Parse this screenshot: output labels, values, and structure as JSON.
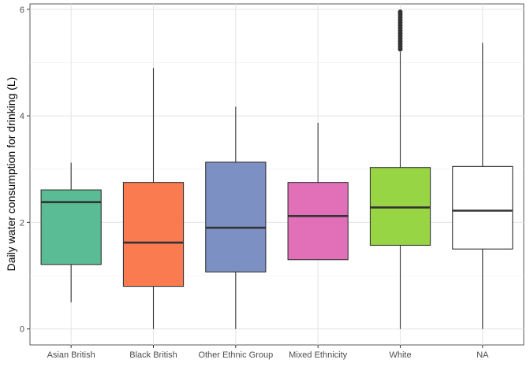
{
  "chart_data": {
    "type": "boxplot",
    "title": "",
    "xlabel": "",
    "ylabel": "Daily water consumption for drinking (L)",
    "ylim": [
      -0.3,
      6.1
    ],
    "yticks": [
      0,
      2,
      4,
      6
    ],
    "grid": true,
    "legend": "none",
    "categories": [
      "Asian British",
      "Black British",
      "Other Ethnic Group",
      "Mixed Ethnicity",
      "White",
      "NA"
    ],
    "boxes": [
      {
        "category": "Asian British",
        "min": 0.5,
        "q1": 1.21,
        "median": 2.38,
        "q3": 2.61,
        "max": 3.12,
        "fill": "#5abc94",
        "outliers": []
      },
      {
        "category": "Black British",
        "min": 0.0,
        "q1": 0.8,
        "median": 1.62,
        "q3": 2.75,
        "max": 4.9,
        "fill": "#fb7b50",
        "outliers": []
      },
      {
        "category": "Other Ethnic Group",
        "min": 0.0,
        "q1": 1.07,
        "median": 1.9,
        "q3": 3.13,
        "max": 4.17,
        "fill": "#7c90c3",
        "outliers": []
      },
      {
        "category": "Mixed Ethnicity",
        "min": 1.3,
        "q1": 1.3,
        "median": 2.12,
        "q3": 2.75,
        "max": 3.87,
        "fill": "#e170b9",
        "outliers": []
      },
      {
        "category": "White",
        "min": 0.0,
        "q1": 1.57,
        "median": 2.28,
        "q3": 3.03,
        "max": 5.2,
        "fill": "#97d544",
        "outliers": [
          5.25,
          5.3,
          5.35,
          5.4,
          5.45,
          5.5,
          5.55,
          5.6,
          5.65,
          5.7,
          5.75,
          5.8,
          5.85,
          5.9,
          5.95
        ]
      },
      {
        "category": "NA",
        "min": 0.0,
        "q1": 1.5,
        "median": 2.22,
        "q3": 3.05,
        "max": 5.37,
        "fill": "#ffffff",
        "outliers": []
      }
    ]
  }
}
